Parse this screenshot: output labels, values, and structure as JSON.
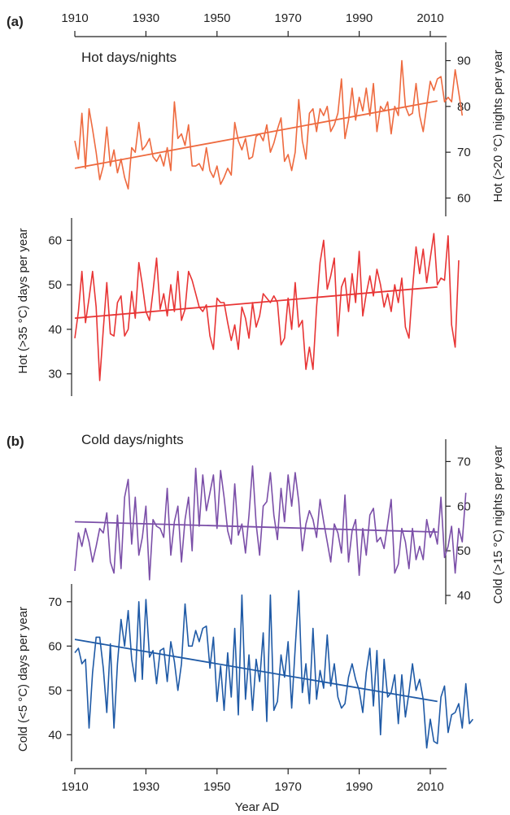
{
  "panel_labels": [
    "(a)",
    "(b)"
  ],
  "chart_data": [
    {
      "type": "line",
      "title": "Hot days/nights",
      "xlabel": "",
      "ylabel": "Hot (>20 °C) nights per year",
      "ylim": [
        56,
        94
      ],
      "yticks": [
        60,
        70,
        80,
        90
      ],
      "y_axis_side": "right",
      "x_ticks": [
        1910,
        1930,
        1950,
        1970,
        1990,
        2010
      ],
      "x_axis_position": "top",
      "color": "#ee6a3f",
      "x_start": 1910,
      "values": [
        72.5,
        68.5,
        78.5,
        66.5,
        79.5,
        75,
        70,
        64,
        67,
        75.5,
        67,
        70.5,
        65.5,
        68.5,
        64.5,
        62,
        71,
        70,
        76.5,
        70.5,
        71.5,
        73,
        69,
        68,
        69.5,
        67,
        71,
        66,
        81,
        73,
        74,
        71.5,
        76,
        67,
        67,
        67.5,
        66,
        71,
        66,
        64.5,
        67,
        63,
        64.5,
        66.5,
        65,
        76.5,
        72.5,
        70.5,
        73,
        68.5,
        69,
        73.5,
        74,
        72.5,
        76,
        70,
        72,
        75,
        77.5,
        68,
        69.5,
        66,
        70,
        81.5,
        72.5,
        68.5,
        78.5,
        79.5,
        74.5,
        79.5,
        78,
        80,
        74.5,
        76,
        78.5,
        86,
        73,
        77,
        84,
        77,
        82,
        79,
        84,
        78,
        85,
        74.5,
        80,
        79,
        81,
        74,
        80,
        78,
        90,
        80,
        78,
        78.5,
        85,
        78,
        74.5,
        80,
        85.5,
        83.5,
        86,
        86.5,
        81,
        82,
        81,
        88,
        83,
        78
      ],
      "trend": {
        "start": [
          1910,
          66.5
        ],
        "end": [
          2012,
          81.2
        ]
      }
    },
    {
      "type": "line",
      "title": "",
      "xlabel": "",
      "ylabel": "Hot (>35 °C) days per year",
      "ylim": [
        25,
        65
      ],
      "yticks": [
        30,
        40,
        50,
        60
      ],
      "y_axis_side": "left",
      "color": "#e83535",
      "x_start": 1910,
      "values": [
        38,
        44,
        53,
        41.5,
        47,
        53,
        45,
        28.5,
        40,
        50.5,
        39,
        38.5,
        46,
        47.5,
        38.5,
        40,
        48.5,
        42.5,
        55,
        50,
        44,
        42,
        48.5,
        56,
        44.5,
        48,
        43,
        50,
        44,
        53,
        42,
        44.5,
        53,
        51,
        48,
        45,
        44,
        45.5,
        38.5,
        35.5,
        47,
        46,
        46,
        41.5,
        37.5,
        41,
        35.5,
        45,
        42.5,
        38,
        46,
        40.5,
        43,
        48,
        47,
        46,
        47.5,
        46,
        36.5,
        38,
        47,
        40,
        50.5,
        40.5,
        42,
        31,
        36,
        31,
        45,
        55,
        60,
        49,
        52,
        56,
        38.5,
        49.5,
        51.5,
        44,
        52.5,
        46,
        57.5,
        43,
        48,
        52,
        47.5,
        53.5,
        50,
        45,
        48,
        44,
        50,
        46,
        51.5,
        40.5,
        38,
        49,
        58.5,
        52.5,
        58,
        50.5,
        56,
        61.5,
        50,
        51.5,
        51,
        61,
        41,
        36,
        55.5
      ],
      "trend": {
        "start": [
          1910,
          42.5
        ],
        "end": [
          2012,
          49.5
        ]
      }
    },
    {
      "type": "line",
      "title": "Cold days/nights",
      "xlabel": "",
      "ylabel": "Cold (>15 °C) nights per year",
      "ylim": [
        38,
        75
      ],
      "yticks": [
        40,
        50,
        60,
        70
      ],
      "y_axis_side": "right",
      "color": "#7b4fa8",
      "x_start": 1910,
      "values": [
        45.5,
        54,
        51,
        55,
        52,
        47.5,
        51,
        55,
        54,
        58.5,
        47.5,
        45,
        58,
        46,
        62,
        66,
        51.5,
        62,
        49,
        53,
        60,
        43.5,
        57,
        55.5,
        55,
        53,
        64,
        49,
        56.5,
        60,
        47.5,
        57,
        62,
        50,
        68.5,
        55.5,
        67,
        59,
        63,
        67,
        55,
        68,
        62,
        54.5,
        51.5,
        65,
        53.5,
        56,
        49.5,
        58,
        69,
        56,
        49,
        60,
        61,
        67.5,
        58,
        52.5,
        64,
        56.5,
        67,
        60,
        67.5,
        61,
        50,
        56,
        59,
        57,
        53,
        61.5,
        56.5,
        52,
        47.5,
        56,
        54,
        49.5,
        62.5,
        47.5,
        54.5,
        57,
        44.5,
        55,
        49,
        58,
        59.5,
        52,
        53,
        50.5,
        56,
        61.5,
        45,
        47,
        55,
        52,
        46,
        55,
        48,
        51,
        48,
        57,
        53,
        55,
        51.5,
        62,
        48.5,
        51,
        55.5,
        45,
        55,
        52,
        63
      ],
      "trend": {
        "start": [
          1910,
          56.5
        ],
        "end": [
          2012,
          54.2
        ]
      }
    },
    {
      "type": "line",
      "title": "",
      "xlabel": "Year AD",
      "ylabel": "Cold (<5 °C) days per year",
      "ylim": [
        34,
        74
      ],
      "yticks": [
        40,
        50,
        60,
        70
      ],
      "y_axis_side": "left",
      "x_ticks": [
        1910,
        1930,
        1950,
        1970,
        1990,
        2010
      ],
      "x_axis_position": "bottom",
      "color": "#1f5aa6",
      "x_start": 1910,
      "values": [
        58.5,
        59.5,
        56,
        57,
        41.5,
        54,
        62,
        62,
        55,
        45,
        60.5,
        41.5,
        56,
        66,
        60,
        68,
        57,
        52,
        70,
        52.5,
        70.5,
        57.5,
        59,
        51.5,
        59,
        59.5,
        52,
        61,
        56.5,
        50,
        56,
        69.5,
        60,
        60,
        63.5,
        61,
        64,
        64.5,
        55,
        62,
        47.5,
        55.5,
        45.5,
        58.5,
        48.5,
        64,
        44.5,
        71.5,
        48,
        58,
        45.5,
        57,
        52,
        63,
        43,
        71.5,
        45.5,
        47.5,
        58,
        53,
        61,
        46,
        59.5,
        72.5,
        49.5,
        56,
        47,
        64,
        48,
        54.5,
        50.5,
        62.5,
        51,
        56,
        48.5,
        46,
        47,
        53,
        56,
        52.5,
        50,
        45,
        54,
        59.5,
        46.5,
        59,
        40,
        57,
        48.5,
        49.5,
        53.5,
        42.5,
        53.5,
        44,
        49.5,
        56,
        50,
        52.5,
        48,
        37,
        43.5,
        38.5,
        38,
        48.5,
        51,
        40.5,
        44.5,
        45,
        47,
        41.5,
        51.5,
        42.5,
        43.5
      ],
      "trend": {
        "start": [
          1910,
          61.5
        ],
        "end": [
          2012,
          47.5
        ]
      }
    }
  ]
}
